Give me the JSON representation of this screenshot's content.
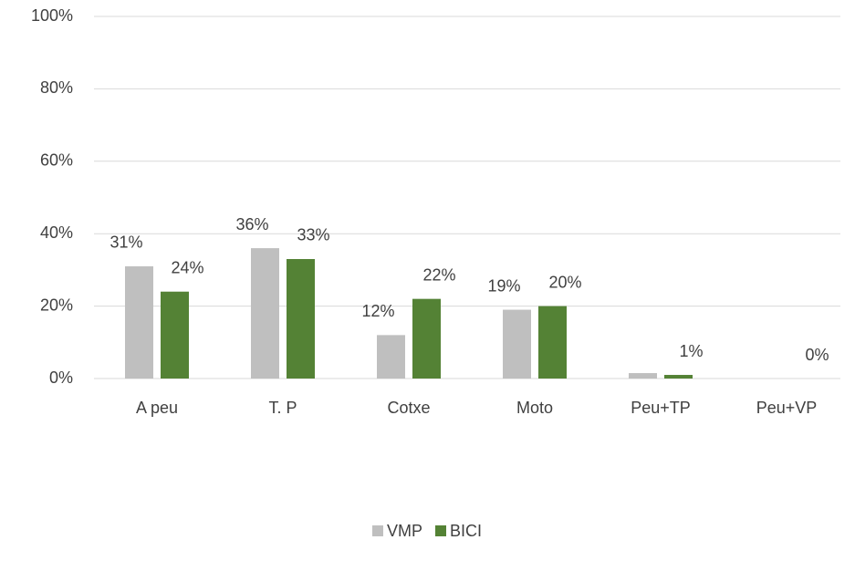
{
  "chart_data": {
    "type": "bar",
    "categories": [
      "A peu",
      "T. P",
      "Cotxe",
      "Moto",
      "Peu+TP",
      "Peu+VP"
    ],
    "series": [
      {
        "name": "VMP",
        "color": "#bfbfbf",
        "values": [
          31,
          36,
          12,
          19,
          1.5,
          0
        ],
        "value_labels": [
          "31%",
          "36%",
          "12%",
          "19%",
          null,
          null
        ]
      },
      {
        "name": "BICI",
        "color": "#548235",
        "values": [
          24,
          33,
          22,
          20,
          1,
          0
        ],
        "value_labels": [
          "24%",
          "33%",
          "22%",
          "20%",
          "1%",
          "0%"
        ]
      }
    ],
    "ylim": [
      0,
      100
    ],
    "yticks": [
      {
        "value": 0,
        "label": "0%"
      },
      {
        "value": 20,
        "label": "20%"
      },
      {
        "value": 40,
        "label": "40%"
      },
      {
        "value": 60,
        "label": "60%"
      },
      {
        "value": 80,
        "label": "80%"
      },
      {
        "value": 100,
        "label": "100%"
      }
    ],
    "grid": true,
    "legend": "bottom"
  }
}
